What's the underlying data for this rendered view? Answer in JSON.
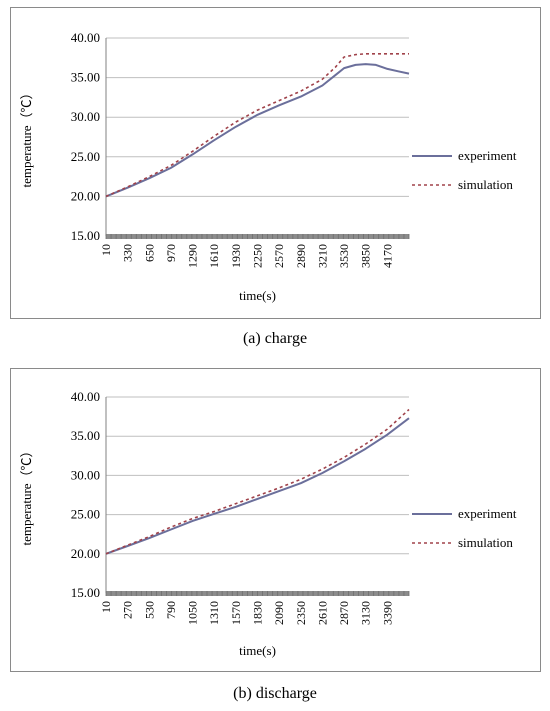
{
  "captions": {
    "a": "(a) charge",
    "b": "(b) discharge"
  },
  "colors": {
    "experiment": "#6b6f9b",
    "simulation": "#a0424a",
    "grid": "#bfbfbf",
    "tickbar": "#8c8c8c"
  },
  "chart_data": [
    {
      "type": "line",
      "xlabel": "time(s)",
      "ylabel": "temperature（℃）",
      "ylim": [
        15,
        40
      ],
      "yticks": [
        "15.00",
        "20.00",
        "25.00",
        "30.00",
        "35.00",
        "40.00"
      ],
      "xticks": [
        "10",
        "330",
        "650",
        "970",
        "1290",
        "1610",
        "1930",
        "2250",
        "2570",
        "2890",
        "3210",
        "3530",
        "3850",
        "4170"
      ],
      "xlim": [
        10,
        4490
      ],
      "grid": true,
      "legend": "right",
      "series": [
        {
          "name": "experiment",
          "style": "solid",
          "x": [
            10,
            330,
            650,
            970,
            1290,
            1610,
            1930,
            2250,
            2570,
            2890,
            3210,
            3400,
            3530,
            3700,
            3850,
            4000,
            4170,
            4330,
            4490
          ],
          "y": [
            20.0,
            21.1,
            22.3,
            23.6,
            25.3,
            27.1,
            28.8,
            30.3,
            31.5,
            32.6,
            34.0,
            35.3,
            36.2,
            36.6,
            36.7,
            36.6,
            36.1,
            35.8,
            35.5
          ]
        },
        {
          "name": "simulation",
          "style": "dashed",
          "x": [
            10,
            330,
            650,
            970,
            1290,
            1610,
            1930,
            2250,
            2570,
            2890,
            3210,
            3400,
            3530,
            3700,
            3850,
            4000,
            4170,
            4330,
            4490
          ],
          "y": [
            20.0,
            21.2,
            22.5,
            23.9,
            25.7,
            27.6,
            29.4,
            30.9,
            32.1,
            33.3,
            34.8,
            36.3,
            37.6,
            37.9,
            38.0,
            38.0,
            38.0,
            38.0,
            38.0
          ]
        }
      ]
    },
    {
      "type": "line",
      "xlabel": "time(s)",
      "ylabel": "temperature（℃）",
      "ylim": [
        15,
        40
      ],
      "yticks": [
        "15.00",
        "20.00",
        "25.00",
        "30.00",
        "35.00",
        "40.00"
      ],
      "xticks": [
        "10",
        "270",
        "530",
        "790",
        "1050",
        "1310",
        "1570",
        "1830",
        "2090",
        "2350",
        "2610",
        "2870",
        "3130",
        "3390"
      ],
      "xlim": [
        10,
        3650
      ],
      "grid": true,
      "legend": "right",
      "series": [
        {
          "name": "experiment",
          "style": "solid",
          "x": [
            10,
            270,
            530,
            790,
            1050,
            1310,
            1570,
            1830,
            2090,
            2350,
            2610,
            2870,
            3130,
            3390,
            3650
          ],
          "y": [
            20.0,
            21.0,
            22.0,
            23.1,
            24.2,
            25.1,
            26.0,
            27.0,
            28.0,
            29.0,
            30.3,
            31.8,
            33.4,
            35.2,
            37.3
          ]
        },
        {
          "name": "simulation",
          "style": "dashed",
          "x": [
            10,
            270,
            530,
            790,
            1050,
            1310,
            1570,
            1830,
            2090,
            2350,
            2610,
            2870,
            3130,
            3390,
            3650
          ],
          "y": [
            20.0,
            21.1,
            22.2,
            23.4,
            24.5,
            25.4,
            26.4,
            27.4,
            28.4,
            29.5,
            30.8,
            32.3,
            34.0,
            35.9,
            38.4
          ]
        }
      ]
    }
  ]
}
